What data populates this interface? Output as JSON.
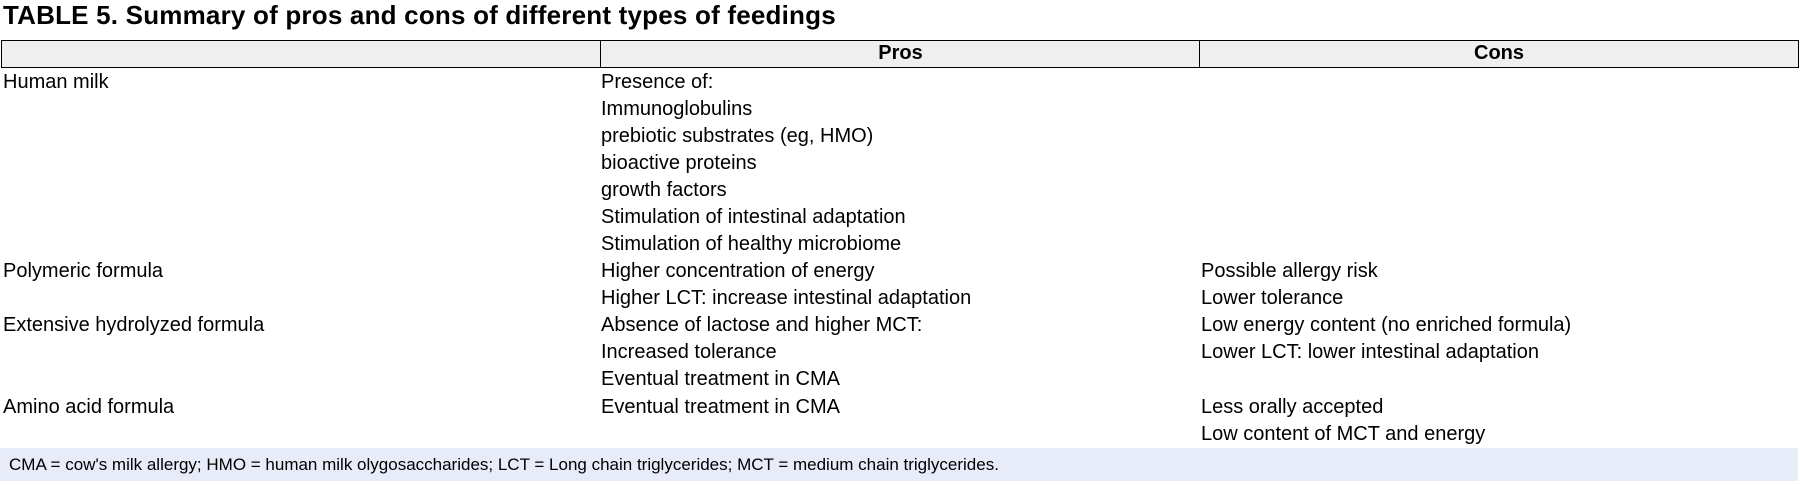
{
  "title": "TABLE 5. Summary of pros and cons of different types of feedings",
  "columns": [
    "",
    "Pros",
    "Cons"
  ],
  "rows": [
    {
      "label": "Human milk",
      "pros": [
        "Presence of:",
        "Immunoglobulins",
        "prebiotic substrates (eg, HMO)",
        "bioactive proteins",
        "growth factors",
        "Stimulation of intestinal adaptation",
        "Stimulation of healthy microbiome"
      ],
      "cons": []
    },
    {
      "label": "Polymeric formula",
      "pros": [
        "Higher concentration of energy",
        "Higher LCT: increase intestinal adaptation"
      ],
      "cons": [
        "Possible allergy risk",
        "Lower tolerance"
      ]
    },
    {
      "label": "Extensive hydrolyzed formula",
      "pros": [
        "Absence of lactose and higher MCT:",
        "Increased tolerance",
        "Eventual treatment in CMA"
      ],
      "cons": [
        "Low energy content (no enriched formula)",
        "Lower LCT: lower intestinal adaptation"
      ]
    },
    {
      "label": "Amino acid formula",
      "pros": [
        "Eventual treatment in CMA"
      ],
      "cons": [
        "Less orally accepted",
        "Low content of MCT and energy"
      ]
    }
  ],
  "footnote": "CMA = cow's milk allergy; HMO = human milk olygosaccharides; LCT = Long chain triglycerides; MCT = medium chain triglycerides."
}
